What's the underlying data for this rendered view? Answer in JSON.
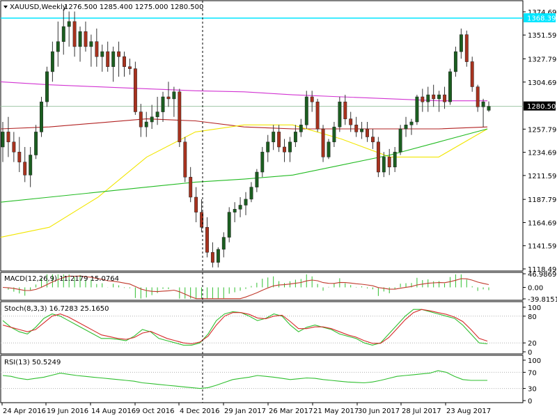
{
  "header": {
    "symbol": "XAUUSD,Weekly",
    "ohlc": "1276.500 1285.400 1275.000 1280.500"
  },
  "colors": {
    "bull_candle": "#1b5e20",
    "bear_candle": "#a8321e",
    "wick": "#333333",
    "ma_magenta": "#d233d2",
    "ma_red": "#b22222",
    "ma_yellow": "#f2e600",
    "ma_green": "#22bb22",
    "hline_cyan": "#00e5ff",
    "hline_gray": "#9fc7a5",
    "price_tag_bg": "#000000",
    "price_tag_fg": "#ffffff",
    "cyan_tag_bg": "#00e5ff",
    "macd_hist": "#2fbf2f",
    "macd_signal": "#c0392b",
    "stoch_main": "#2fbf2f",
    "stoch_signal": "#d62a2a",
    "rsi_line": "#2fbf2f",
    "grid_dot": "#b0b0b0"
  },
  "main_pane": {
    "y_ticks": [
      "1374.690",
      "1351.590",
      "1327.790",
      "1304.690",
      "1257.790",
      "1234.690",
      "1211.590",
      "1187.790",
      "1164.690",
      "1141.590",
      "1118.490"
    ],
    "y_tick_values": [
      1374.69,
      1351.59,
      1327.79,
      1304.69,
      1257.79,
      1234.69,
      1211.59,
      1187.79,
      1164.69,
      1141.59,
      1118.49
    ],
    "y_range": [
      1118.49,
      1383.0
    ],
    "cyan_level": 1368.395,
    "cyan_label": "1368.395",
    "current_price": 1280.5,
    "current_label": "1280.500"
  },
  "x_labels": [
    "24 Apr 2016",
    "19 Jun 2016",
    "14 Aug 2016",
    "9 Oct 2016",
    "4 Dec 2016",
    "29 Jan 2017",
    "26 Mar 2017",
    "21 May 2017",
    "30 Jun 2017",
    "28 Jul 2017",
    "23 Aug 2017"
  ],
  "macd_pane": {
    "title": "MACD(12,26,9) 11.2179 15.0764",
    "y_ticks": [
      "46.9869",
      "0.00",
      "-39.8151"
    ],
    "y_tick_values": [
      46.9869,
      0,
      -39.8151
    ]
  },
  "stoch_pane": {
    "title": "Stoch(8,3,3) 16.7283 25.1650",
    "y_ticks": [
      "100",
      "80",
      "20",
      "0"
    ],
    "y_tick_values": [
      100,
      80,
      20,
      0
    ]
  },
  "rsi_pane": {
    "title": "RSI(13) 50.5249",
    "y_ticks": [
      "100",
      "70",
      "30",
      "0"
    ],
    "y_tick_values": [
      100,
      70,
      30,
      0
    ]
  },
  "chart_data": {
    "type": "candlestick",
    "title": "XAUUSD,Weekly",
    "timeframe": "Weekly",
    "candles": [
      [
        1240,
        1265,
        1225,
        1255
      ],
      [
        1255,
        1270,
        1230,
        1245
      ],
      [
        1245,
        1255,
        1225,
        1235
      ],
      [
        1235,
        1250,
        1215,
        1225
      ],
      [
        1225,
        1240,
        1205,
        1212
      ],
      [
        1212,
        1240,
        1200,
        1232
      ],
      [
        1232,
        1262,
        1228,
        1255
      ],
      [
        1255,
        1290,
        1250,
        1285
      ],
      [
        1285,
        1320,
        1280,
        1315
      ],
      [
        1315,
        1345,
        1305,
        1335
      ],
      [
        1335,
        1365,
        1320,
        1345
      ],
      [
        1345,
        1378,
        1332,
        1360
      ],
      [
        1360,
        1375,
        1340,
        1365
      ],
      [
        1365,
        1375,
        1330,
        1340
      ],
      [
        1340,
        1360,
        1325,
        1355
      ],
      [
        1355,
        1365,
        1335,
        1340
      ],
      [
        1340,
        1352,
        1320,
        1345
      ],
      [
        1345,
        1358,
        1320,
        1330
      ],
      [
        1330,
        1342,
        1315,
        1335
      ],
      [
        1335,
        1345,
        1315,
        1320
      ],
      [
        1320,
        1340,
        1305,
        1335
      ],
      [
        1335,
        1345,
        1310,
        1330
      ],
      [
        1330,
        1335,
        1310,
        1320
      ],
      [
        1320,
        1328,
        1312,
        1318
      ],
      [
        1318,
        1325,
        1272,
        1275
      ],
      [
        1275,
        1283,
        1250,
        1260
      ],
      [
        1260,
        1275,
        1250,
        1265
      ],
      [
        1265,
        1282,
        1258,
        1270
      ],
      [
        1270,
        1290,
        1262,
        1275
      ],
      [
        1275,
        1295,
        1265,
        1290
      ],
      [
        1290,
        1305,
        1280,
        1288
      ],
      [
        1288,
        1300,
        1270,
        1295
      ],
      [
        1295,
        1298,
        1240,
        1245
      ],
      [
        1245,
        1250,
        1205,
        1210
      ],
      [
        1210,
        1220,
        1185,
        1190
      ],
      [
        1190,
        1200,
        1165,
        1175
      ],
      [
        1175,
        1188,
        1155,
        1160
      ],
      [
        1160,
        1170,
        1130,
        1135
      ],
      [
        1135,
        1145,
        1120,
        1125
      ],
      [
        1125,
        1140,
        1120,
        1138
      ],
      [
        1138,
        1155,
        1130,
        1150
      ],
      [
        1150,
        1180,
        1145,
        1175
      ],
      [
        1175,
        1185,
        1165,
        1178
      ],
      [
        1178,
        1190,
        1170,
        1182
      ],
      [
        1182,
        1195,
        1172,
        1188
      ],
      [
        1188,
        1205,
        1185,
        1200
      ],
      [
        1200,
        1218,
        1195,
        1215
      ],
      [
        1215,
        1240,
        1210,
        1235
      ],
      [
        1235,
        1252,
        1225,
        1245
      ],
      [
        1245,
        1262,
        1237,
        1255
      ],
      [
        1255,
        1262,
        1235,
        1240
      ],
      [
        1240,
        1248,
        1225,
        1235
      ],
      [
        1235,
        1250,
        1225,
        1245
      ],
      [
        1245,
        1262,
        1240,
        1255
      ],
      [
        1255,
        1268,
        1250,
        1262
      ],
      [
        1262,
        1296,
        1258,
        1290
      ],
      [
        1290,
        1296,
        1275,
        1285
      ],
      [
        1285,
        1288,
        1255,
        1258
      ],
      [
        1258,
        1262,
        1225,
        1230
      ],
      [
        1230,
        1248,
        1228,
        1245
      ],
      [
        1245,
        1265,
        1240,
        1260
      ],
      [
        1260,
        1290,
        1255,
        1285
      ],
      [
        1285,
        1292,
        1262,
        1268
      ],
      [
        1268,
        1275,
        1255,
        1262
      ],
      [
        1262,
        1270,
        1250,
        1255
      ],
      [
        1255,
        1265,
        1248,
        1258
      ],
      [
        1258,
        1265,
        1245,
        1250
      ],
      [
        1250,
        1258,
        1238,
        1245
      ],
      [
        1245,
        1250,
        1210,
        1215
      ],
      [
        1215,
        1235,
        1210,
        1230
      ],
      [
        1230,
        1238,
        1212,
        1220
      ],
      [
        1220,
        1240,
        1215,
        1235
      ],
      [
        1235,
        1262,
        1232,
        1258
      ],
      [
        1258,
        1270,
        1250,
        1262
      ],
      [
        1262,
        1268,
        1252,
        1265
      ],
      [
        1265,
        1292,
        1262,
        1290
      ],
      [
        1290,
        1298,
        1275,
        1285
      ],
      [
        1285,
        1300,
        1275,
        1292
      ],
      [
        1292,
        1302,
        1280,
        1288
      ],
      [
        1288,
        1296,
        1275,
        1292
      ],
      [
        1292,
        1300,
        1278,
        1285
      ],
      [
        1285,
        1318,
        1282,
        1315
      ],
      [
        1315,
        1340,
        1310,
        1335
      ],
      [
        1335,
        1358,
        1328,
        1352
      ],
      [
        1352,
        1356,
        1320,
        1325
      ],
      [
        1325,
        1330,
        1295,
        1300
      ],
      [
        1300,
        1302,
        1275,
        1280
      ],
      [
        1280,
        1288,
        1260,
        1285
      ],
      [
        1276.5,
        1285.4,
        1275.0,
        1280.5
      ]
    ],
    "moving_averages": [
      {
        "color": "magenta",
        "values": [
          1305,
          1302,
          1300,
          1298,
          1296,
          1295,
          1292,
          1290,
          1288,
          1286,
          1286
        ]
      },
      {
        "color": "red",
        "values": [
          1258,
          1260,
          1264,
          1268,
          1266,
          1260,
          1258,
          1258,
          1258,
          1258,
          1260
        ]
      },
      {
        "color": "yellow",
        "values": [
          1150,
          1160,
          1190,
          1230,
          1255,
          1262,
          1262,
          1248,
          1230,
          1230,
          1258
        ]
      },
      {
        "color": "green",
        "values": [
          1185,
          1190,
          1195,
          1200,
          1205,
          1208,
          1212,
          1222,
          1232,
          1245,
          1258
        ]
      }
    ],
    "indicators": {
      "MACD": {
        "main": 11.2179,
        "signal": 15.0764
      },
      "Stoch": {
        "main": 16.7283,
        "signal": 25.165
      },
      "RSI": {
        "value": 50.5249
      }
    },
    "stoch_main": [
      70,
      55,
      45,
      40,
      55,
      75,
      85,
      80,
      70,
      60,
      50,
      40,
      30,
      30,
      28,
      25,
      35,
      50,
      45,
      30,
      25,
      20,
      15,
      15,
      20,
      40,
      70,
      85,
      90,
      88,
      80,
      70,
      75,
      85,
      80,
      60,
      45,
      55,
      60,
      55,
      50,
      40,
      35,
      30,
      20,
      15,
      20,
      40,
      60,
      80,
      95,
      95,
      90,
      85,
      80,
      75,
      60,
      40,
      20,
      18
    ],
    "stoch_signal": [
      60,
      55,
      50,
      45,
      50,
      65,
      80,
      85,
      78,
      68,
      58,
      48,
      38,
      34,
      30,
      28,
      32,
      42,
      46,
      38,
      30,
      25,
      20,
      18,
      22,
      35,
      60,
      80,
      88,
      88,
      84,
      76,
      74,
      80,
      82,
      68,
      52,
      52,
      56,
      56,
      52,
      45,
      38,
      33,
      25,
      19,
      19,
      32,
      52,
      72,
      88,
      95,
      92,
      88,
      84,
      78,
      68,
      50,
      30,
      24
    ],
    "rsi_values": [
      62,
      60,
      55,
      52,
      55,
      58,
      63,
      68,
      65,
      62,
      60,
      58,
      56,
      54,
      52,
      50,
      48,
      44,
      42,
      40,
      38,
      36,
      34,
      32,
      30,
      32,
      38,
      45,
      52,
      55,
      58,
      62,
      60,
      58,
      55,
      52,
      54,
      56,
      55,
      52,
      50,
      48,
      46,
      45,
      44,
      46,
      50,
      55,
      60,
      62,
      64,
      66,
      68,
      74,
      70,
      60,
      52,
      50,
      50,
      50
    ],
    "x_labels": [
      "24 Apr 2016",
      "19 Jun 2016",
      "14 Aug 2016",
      "9 Oct 2016",
      "4 Dec 2016",
      "29 Jan 2017",
      "26 Mar 2017",
      "21 May 2017",
      "30 Jun 2017",
      "28 Jul 2017",
      "23 Aug 2017"
    ],
    "y_tick_labels": [
      "1374.690",
      "1351.590",
      "1327.790",
      "1304.690",
      "1257.790",
      "1234.690",
      "1211.590",
      "1187.790",
      "1164.690",
      "1141.590",
      "1118.490"
    ],
    "horizontal_levels": [
      1368.395,
      1280.5
    ]
  }
}
